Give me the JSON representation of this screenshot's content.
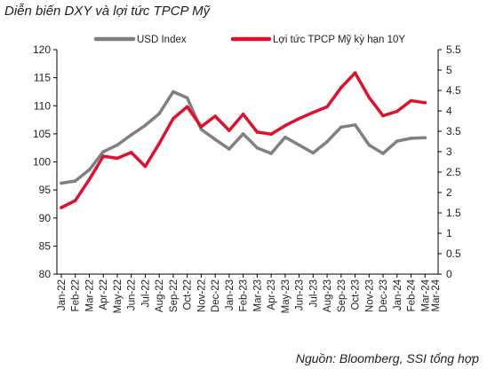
{
  "chart_data": {
    "type": "line",
    "title": "Diễn biến DXY và lợi tức TPCP Mỹ",
    "source": "Nguồn: Bloomberg, SSI tổng hợp",
    "x": [
      "Jan-22",
      "Feb-22",
      "Mar-22",
      "Apr-22",
      "May-22",
      "Jun-22",
      "Jul-22",
      "Aug-22",
      "Sep-22",
      "Oct-22",
      "Nov-22",
      "Dec-22",
      "Jan-23",
      "Feb-23",
      "Mar-23",
      "Apr-23",
      "May-23",
      "Jun-23",
      "Jul-23",
      "Aug-23",
      "Sep-23",
      "Oct-23",
      "Nov-23",
      "Dec-23",
      "Jan-24",
      "Feb-24",
      "Mar-24"
    ],
    "x_end_label": "Mar-24",
    "left_axis": {
      "ylim": [
        80,
        120
      ],
      "ticks": [
        "80",
        "85",
        "90",
        "95",
        "100",
        "105",
        "110",
        "115",
        "120"
      ]
    },
    "right_axis": {
      "ylim": [
        0,
        5.5
      ],
      "ticks": [
        "0",
        "0.5",
        "1",
        "1.5",
        "2",
        "2.5",
        "3",
        "3.5",
        "4",
        "4.5",
        "5",
        "5.5"
      ]
    },
    "legend_position": "top",
    "grid": false,
    "series": [
      {
        "name": "USD Index",
        "axis": "left",
        "color": "#808080",
        "values": [
          96.2,
          96.6,
          98.6,
          101.8,
          103.0,
          104.8,
          106.5,
          108.6,
          112.5,
          111.4,
          105.8,
          104.0,
          102.3,
          105.0,
          102.5,
          101.5,
          104.4,
          103.0,
          101.6,
          103.6,
          106.2,
          106.6,
          103.0,
          101.5,
          103.7,
          104.2,
          104.3
        ]
      },
      {
        "name": "Lợi tức TPCP Mỹ kỳ hạn 10Y",
        "axis": "right",
        "color": "#e0102a",
        "values": [
          1.63,
          1.8,
          2.32,
          2.89,
          2.84,
          2.98,
          2.64,
          3.2,
          3.81,
          4.1,
          3.61,
          3.87,
          3.52,
          3.92,
          3.48,
          3.43,
          3.64,
          3.81,
          3.96,
          4.1,
          4.57,
          4.93,
          4.33,
          3.88,
          3.99,
          4.25,
          4.2
        ]
      }
    ]
  }
}
